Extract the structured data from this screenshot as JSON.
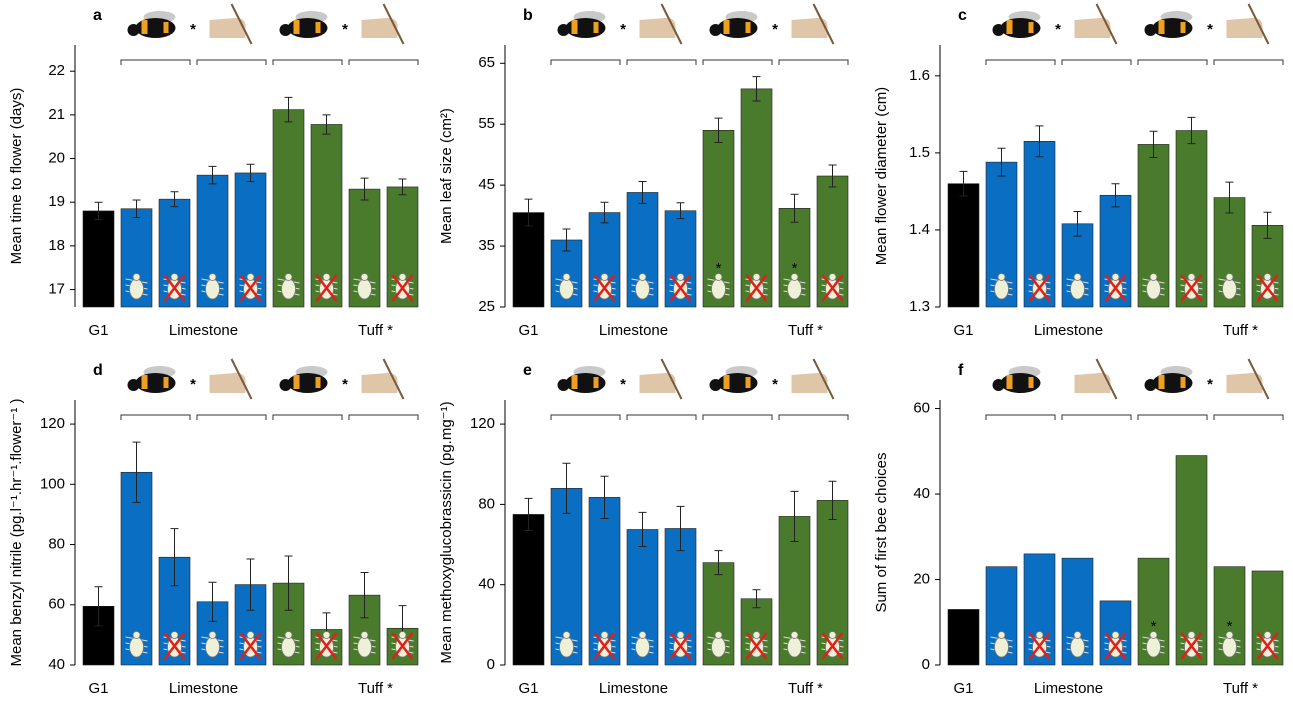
{
  "chart_data": [
    {
      "type": "bar",
      "title": "a",
      "ylabel": "Mean time to flower (days)",
      "values": [
        18.8,
        18.85,
        19.07,
        19.62,
        19.67,
        21.12,
        20.78,
        19.3,
        19.35
      ],
      "errors": [
        0.2,
        0.2,
        0.17,
        0.2,
        0.2,
        0.28,
        0.22,
        0.25,
        0.18
      ],
      "colors": [
        "#000000",
        "#0a6fc2",
        "#0a6fc2",
        "#0a6fc2",
        "#0a6fc2",
        "#4a7b2c",
        "#4a7b2c",
        "#4a7b2c",
        "#4a7b2c"
      ],
      "ylim": [
        16.6,
        22.6
      ],
      "yticks": [
        17,
        18,
        19,
        20,
        21,
        22
      ],
      "group_labels": [
        "G1",
        "Limestone",
        "Tuff *"
      ],
      "pollination_marks": [
        "*",
        "*"
      ]
    },
    {
      "type": "bar",
      "title": "b",
      "ylabel": "Mean leaf size (cm²)",
      "values": [
        40.5,
        36,
        40.5,
        43.8,
        40.8,
        54,
        60.8,
        41.2,
        46.5
      ],
      "errors": [
        2.2,
        1.8,
        1.7,
        1.8,
        1.3,
        2,
        2,
        2.3,
        1.8
      ],
      "colors": [
        "#000000",
        "#0a6fc2",
        "#0a6fc2",
        "#0a6fc2",
        "#0a6fc2",
        "#4a7b2c",
        "#4a7b2c",
        "#4a7b2c",
        "#4a7b2c"
      ],
      "ylim": [
        25,
        68
      ],
      "yticks": [
        25,
        35,
        45,
        55,
        65
      ],
      "group_labels": [
        "G1",
        "Limestone",
        "Tuff *"
      ],
      "pollination_marks": [
        "*",
        "*"
      ],
      "bar_labels": [
        null,
        null,
        null,
        null,
        null,
        "*",
        null,
        "*",
        null
      ]
    },
    {
      "type": "bar",
      "title": "c",
      "ylabel": "Mean flower diameter (cm)",
      "values": [
        1.46,
        1.488,
        1.515,
        1.408,
        1.445,
        1.511,
        1.529,
        1.442,
        1.406
      ],
      "errors": [
        0.016,
        0.018,
        0.02,
        0.016,
        0.015,
        0.017,
        0.017,
        0.02,
        0.017
      ],
      "colors": [
        "#000000",
        "#0a6fc2",
        "#0a6fc2",
        "#0a6fc2",
        "#0a6fc2",
        "#4a7b2c",
        "#4a7b2c",
        "#4a7b2c",
        "#4a7b2c"
      ],
      "ylim": [
        1.3,
        1.64
      ],
      "yticks": [
        1.3,
        1.4,
        1.5,
        1.6
      ],
      "group_labels": [
        "G1",
        "Limestone",
        "Tuff *"
      ],
      "pollination_marks": [
        "*",
        "*"
      ]
    },
    {
      "type": "bar",
      "title": "d",
      "ylabel": "Mean benzyl nitrile (pg.l⁻¹.hr⁻¹.flower⁻¹ )",
      "values": [
        59.5,
        104,
        75.8,
        61,
        66.7,
        67.2,
        51.8,
        63.2,
        52.2
      ],
      "errors": [
        6.5,
        10,
        9.5,
        6.5,
        8.5,
        9,
        5.5,
        7.5,
        7.5
      ],
      "colors": [
        "#000000",
        "#0a6fc2",
        "#0a6fc2",
        "#0a6fc2",
        "#0a6fc2",
        "#4a7b2c",
        "#4a7b2c",
        "#4a7b2c",
        "#4a7b2c"
      ],
      "ylim": [
        40,
        128
      ],
      "yticks": [
        40,
        60,
        80,
        100,
        120
      ],
      "group_labels": [
        "G1",
        "Limestone",
        "Tuff *"
      ],
      "pollination_marks": [
        "*",
        "*"
      ]
    },
    {
      "type": "bar",
      "title": "e",
      "ylabel": "Mean methoxyglucobrassicin (pg.mg⁻¹)",
      "values": [
        75,
        88,
        83.5,
        67.5,
        68,
        51,
        33,
        74,
        82
      ],
      "errors": [
        8,
        12.5,
        10.5,
        8.5,
        11,
        6,
        4.5,
        12.5,
        9.5
      ],
      "colors": [
        "#000000",
        "#0a6fc2",
        "#0a6fc2",
        "#0a6fc2",
        "#0a6fc2",
        "#4a7b2c",
        "#4a7b2c",
        "#4a7b2c",
        "#4a7b2c"
      ],
      "ylim": [
        0,
        132
      ],
      "yticks": [
        0,
        40,
        80,
        120
      ],
      "group_labels": [
        "G1",
        "Limestone",
        "Tuff *"
      ],
      "pollination_marks": [
        "*",
        "*"
      ]
    },
    {
      "type": "bar",
      "title": "f",
      "ylabel": "Sum of first bee choices",
      "values": [
        13,
        23,
        26,
        25,
        15,
        25,
        49,
        23,
        22
      ],
      "colors": [
        "#000000",
        "#0a6fc2",
        "#0a6fc2",
        "#0a6fc2",
        "#0a6fc2",
        "#4a7b2c",
        "#4a7b2c",
        "#4a7b2c",
        "#4a7b2c"
      ],
      "ylim": [
        0,
        62
      ],
      "yticks": [
        0,
        20,
        40,
        60
      ],
      "group_labels": [
        "G1",
        "Limestone",
        "Tuff *"
      ],
      "pollination_marks": [
        null,
        "*"
      ],
      "bar_labels": [
        null,
        null,
        null,
        null,
        null,
        "*",
        null,
        "*",
        null
      ]
    }
  ]
}
